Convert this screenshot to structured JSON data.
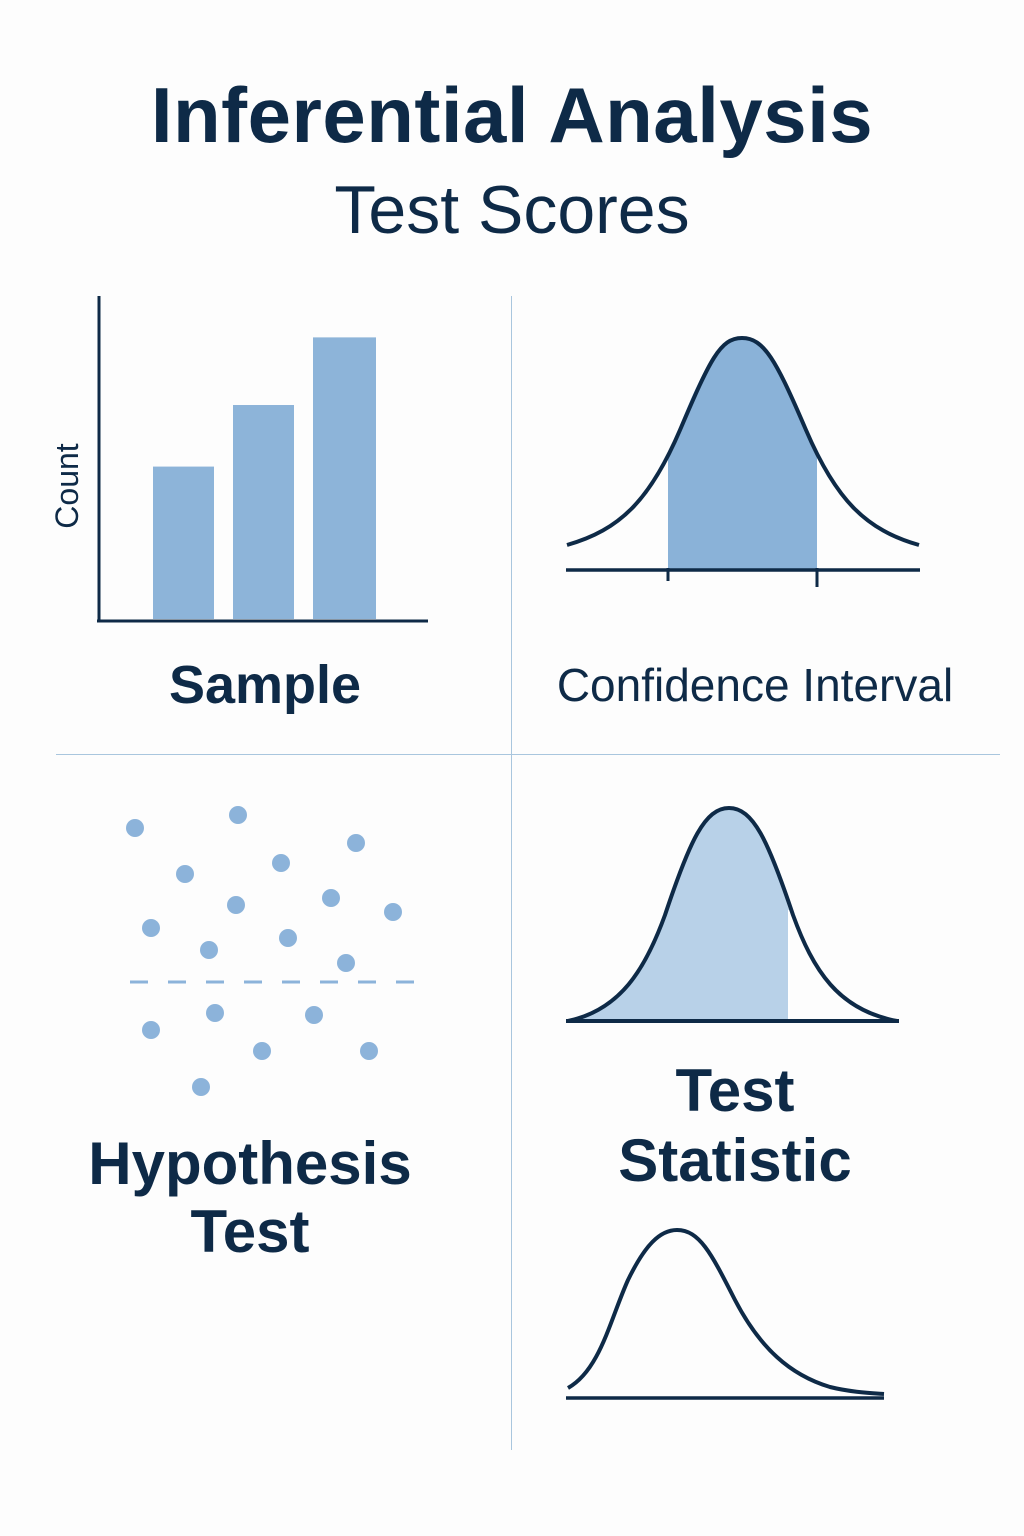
{
  "header": {
    "title": "Inferential Analysis",
    "subtitle": "Test Scores"
  },
  "panels": {
    "sample": {
      "label": "Sample",
      "y_axis_label": "Count"
    },
    "confidence_interval": {
      "label": "Confidence Interval"
    },
    "hypothesis_test": {
      "label_line1": "Hypothesis",
      "label_line2": "Test"
    },
    "test_statistic": {
      "label_line1": "Test",
      "label_line2": "Statistic"
    }
  },
  "chart_data": {
    "type": "bar",
    "categories": [
      "",
      "",
      ""
    ],
    "values": [
      151,
      212,
      279
    ],
    "ylabel": "Count",
    "xlabel": "",
    "ylim": [
      0,
      320
    ]
  },
  "colors": {
    "ink": "#0e2a47",
    "bar_fill": "#8db4d9",
    "curve_fill": "#8ab2d8",
    "curve_fill_light": "#b8d1e8",
    "dot": "#8cb3da",
    "divider": "#a9c6de"
  }
}
